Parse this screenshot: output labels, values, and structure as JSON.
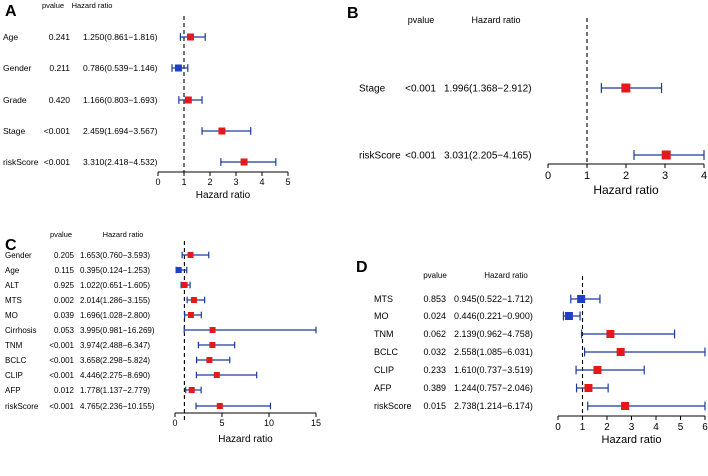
{
  "colors": {
    "hr_gt_1": "#e3191c",
    "hr_lt_1": "#1f3fc6",
    "ci_line": "#1a3a9e",
    "axis": "#000000",
    "ref_line": "#000000"
  },
  "chart_data": [
    {
      "panel": "A",
      "type": "forest",
      "header": {
        "pvalue": "pvalue",
        "hr": "Hazard ratio"
      },
      "xlabel": "Hazard ratio",
      "xlim": [
        0,
        5
      ],
      "xticks": [
        "0",
        "1",
        "2",
        "3",
        "4",
        "5"
      ],
      "rows": [
        {
          "label": "Age",
          "pvalue": "0.241",
          "hr_text": "1.250(0.861−1.816)",
          "hr": 1.25,
          "low": 0.861,
          "high": 1.816
        },
        {
          "label": "Gender",
          "pvalue": "0.211",
          "hr_text": "0.786(0.539−1.146)",
          "hr": 0.786,
          "low": 0.539,
          "high": 1.146
        },
        {
          "label": "Grade",
          "pvalue": "0.420",
          "hr_text": "1.166(0.803−1.693)",
          "hr": 1.166,
          "low": 0.803,
          "high": 1.693
        },
        {
          "label": "Stage",
          "pvalue": "<0.001",
          "hr_text": "2.459(1.694−3.567)",
          "hr": 2.459,
          "low": 1.694,
          "high": 3.567
        },
        {
          "label": "riskScore",
          "pvalue": "<0.001",
          "hr_text": "3.310(2.418−4.532)",
          "hr": 3.31,
          "low": 2.418,
          "high": 4.532
        }
      ]
    },
    {
      "panel": "B",
      "type": "forest",
      "header": {
        "pvalue": "pvalue",
        "hr": "Hazard ratio"
      },
      "xlabel": "Hazard ratio",
      "xlim": [
        0,
        4
      ],
      "xticks": [
        "0",
        "1",
        "2",
        "3",
        "4"
      ],
      "rows": [
        {
          "label": "Stage",
          "pvalue": "<0.001",
          "hr_text": "1.996(1.368−2.912)",
          "hr": 1.996,
          "low": 1.368,
          "high": 2.912
        },
        {
          "label": "riskScore",
          "pvalue": "<0.001",
          "hr_text": "3.031(2.205−4.165)",
          "hr": 3.031,
          "low": 2.205,
          "high": 4.165
        }
      ]
    },
    {
      "panel": "C",
      "type": "forest",
      "header": {
        "pvalue": "pvalue",
        "hr": "Hazard ratio"
      },
      "xlabel": "Hazard ratio",
      "xlim": [
        0,
        15
      ],
      "xticks": [
        "0",
        "5",
        "10",
        "15"
      ],
      "rows": [
        {
          "label": "Gender",
          "pvalue": "0.205",
          "hr_text": "1.653(0.760−3.593)",
          "hr": 1.653,
          "low": 0.76,
          "high": 3.593
        },
        {
          "label": "Age",
          "pvalue": "0.115",
          "hr_text": "0.395(0.124−1.253)",
          "hr": 0.395,
          "low": 0.124,
          "high": 1.253
        },
        {
          "label": "ALT",
          "pvalue": "0.925",
          "hr_text": "1.022(0.651−1.605)",
          "hr": 1.022,
          "low": 0.651,
          "high": 1.605
        },
        {
          "label": "MTS",
          "pvalue": "0.002",
          "hr_text": "2.014(1.286−3.155)",
          "hr": 2.014,
          "low": 1.286,
          "high": 3.155
        },
        {
          "label": "MO",
          "pvalue": "0.039",
          "hr_text": "1.696(1.028−2.800)",
          "hr": 1.696,
          "low": 1.028,
          "high": 2.8
        },
        {
          "label": "Cirrhosis",
          "pvalue": "0.053",
          "hr_text": "3.995(0.981−16.269)",
          "hr": 3.995,
          "low": 0.981,
          "high": 16.269
        },
        {
          "label": "TNM",
          "pvalue": "<0.001",
          "hr_text": "3.974(2.488−6.347)",
          "hr": 3.974,
          "low": 2.488,
          "high": 6.347
        },
        {
          "label": "BCLC",
          "pvalue": "<0.001",
          "hr_text": "3.658(2.298−5.824)",
          "hr": 3.658,
          "low": 2.298,
          "high": 5.824
        },
        {
          "label": "CLIP",
          "pvalue": "<0.001",
          "hr_text": "4.446(2.275−8.690)",
          "hr": 4.446,
          "low": 2.275,
          "high": 8.69
        },
        {
          "label": "AFP",
          "pvalue": "0.012",
          "hr_text": "1.778(1.137−2.779)",
          "hr": 1.778,
          "low": 1.137,
          "high": 2.779
        },
        {
          "label": "riskScore",
          "pvalue": "<0.001",
          "hr_text": "4.765(2.236−10.155)",
          "hr": 4.765,
          "low": 2.236,
          "high": 10.155
        }
      ]
    },
    {
      "panel": "D",
      "type": "forest",
      "header": {
        "pvalue": "pvalue",
        "hr": "Hazard ratio"
      },
      "xlabel": "Hazard ratio",
      "xlim": [
        0,
        6
      ],
      "xticks": [
        "0",
        "1",
        "2",
        "3",
        "4",
        "5",
        "6"
      ],
      "rows": [
        {
          "label": "MTS",
          "pvalue": "0.853",
          "hr_text": "0.945(0.522−1.712)",
          "hr": 0.945,
          "low": 0.522,
          "high": 1.712
        },
        {
          "label": "MO",
          "pvalue": "0.024",
          "hr_text": "0.446(0.221−0.900)",
          "hr": 0.446,
          "low": 0.221,
          "high": 0.9
        },
        {
          "label": "TNM",
          "pvalue": "0.062",
          "hr_text": "2.139(0.962−4.758)",
          "hr": 2.139,
          "low": 0.962,
          "high": 4.758
        },
        {
          "label": "BCLC",
          "pvalue": "0.032",
          "hr_text": "2.558(1.085−6.031)",
          "hr": 2.558,
          "low": 1.085,
          "high": 6.031
        },
        {
          "label": "CLIP",
          "pvalue": "0.233",
          "hr_text": "1.610(0.737−3.519)",
          "hr": 1.61,
          "low": 0.737,
          "high": 3.519
        },
        {
          "label": "AFP",
          "pvalue": "0.389",
          "hr_text": "1.244(0.757−2.046)",
          "hr": 1.244,
          "low": 0.757,
          "high": 2.046
        },
        {
          "label": "riskScore",
          "pvalue": "0.015",
          "hr_text": "2.738(1.214−6.174)",
          "hr": 2.738,
          "low": 1.214,
          "high": 6.174
        }
      ]
    }
  ]
}
